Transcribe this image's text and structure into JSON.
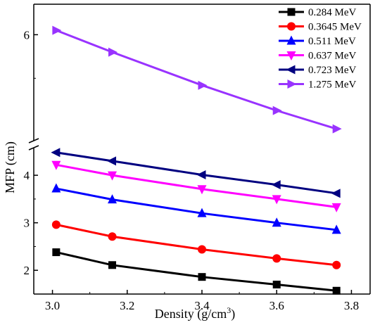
{
  "chart_data": {
    "type": "line",
    "title": "",
    "xlabel": "Density (g/cm",
    "xlabel_sup": "3",
    "xlabel_close": ")",
    "ylabel": "MFP (cm)",
    "x": [
      3.01,
      3.16,
      3.4,
      3.6,
      3.76
    ],
    "xlim": [
      2.95,
      3.85
    ],
    "x_ticks": [
      "3.0",
      "3.2",
      "3.4",
      "3.6",
      "3.8"
    ],
    "x_tick_values": [
      3.0,
      3.2,
      3.4,
      3.6,
      3.8
    ],
    "y_axis_break": true,
    "y_lower_range": [
      1.5,
      4.55
    ],
    "y_lower_ticks": [
      "2",
      "3",
      "4"
    ],
    "y_lower_tick_values": [
      2,
      3,
      4
    ],
    "y_upper_range": [
      4.8,
      6.35
    ],
    "y_upper_ticks": [
      "6"
    ],
    "y_upper_tick_values": [
      6
    ],
    "grid": false,
    "legend_position": "top-right",
    "series": [
      {
        "name": "0.284 MeV",
        "color": "#000000",
        "marker": "square",
        "values": [
          2.38,
          2.11,
          1.86,
          1.7,
          1.57
        ]
      },
      {
        "name": "0.3645 MeV",
        "color": "#ff0000",
        "marker": "circle",
        "values": [
          2.96,
          2.71,
          2.44,
          2.25,
          2.11
        ]
      },
      {
        "name": "0.511 MeV",
        "color": "#0000ff",
        "marker": "triangle-up",
        "values": [
          3.72,
          3.49,
          3.2,
          3.0,
          2.85
        ]
      },
      {
        "name": "0.637 MeV",
        "color": "#ff00ff",
        "marker": "triangle-down",
        "values": [
          4.22,
          4.0,
          3.71,
          3.5,
          3.33
        ]
      },
      {
        "name": "0.723 MeV",
        "color": "#000080",
        "marker": "triangle-left",
        "values": [
          4.48,
          4.3,
          4.01,
          3.8,
          3.62
        ]
      },
      {
        "name": "1.275 MeV",
        "color": "#9933ff",
        "marker": "triangle-right",
        "values": [
          6.05,
          5.8,
          5.42,
          5.13,
          4.92
        ]
      }
    ]
  }
}
